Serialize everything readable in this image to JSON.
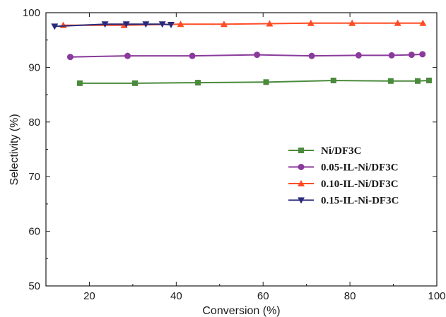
{
  "chart_data": {
    "type": "line",
    "title": "",
    "xlabel": "Conversion (%)",
    "ylabel": "Selectivity (%)",
    "xlim": [
      10,
      100
    ],
    "ylim": [
      50,
      100
    ],
    "xticks": [
      "20",
      "40",
      "60",
      "80",
      "100"
    ],
    "yticks": [
      "50",
      "60",
      "70",
      "80",
      "90",
      "100"
    ],
    "grid": false,
    "legend_position": "right",
    "series": [
      {
        "name": "Ni/DF3C",
        "color": "#4a8a3c",
        "marker": "square",
        "x": [
          17.8,
          30.5,
          45.0,
          60.7,
          76.2,
          89.4,
          95.6,
          98.2
        ],
        "y": [
          87.1,
          87.1,
          87.2,
          87.3,
          87.6,
          87.5,
          87.5,
          87.6
        ]
      },
      {
        "name": "0.05-IL-Ni/DF3C",
        "color": "#8a3a9c",
        "marker": "circle",
        "x": [
          15.6,
          28.8,
          43.7,
          58.6,
          71.2,
          82.0,
          89.6,
          94.2,
          96.7
        ],
        "y": [
          91.9,
          92.1,
          92.1,
          92.3,
          92.1,
          92.2,
          92.2,
          92.3,
          92.4
        ]
      },
      {
        "name": "0.10-IL-Ni/DF3C",
        "color": "#ff4c24",
        "marker": "triangle-up",
        "x": [
          14.0,
          28.0,
          41.0,
          51.0,
          61.5,
          71.0,
          80.5,
          91.0,
          96.8
        ],
        "y": [
          97.7,
          97.7,
          97.9,
          97.9,
          98.0,
          98.1,
          98.1,
          98.1,
          98.1
        ]
      },
      {
        "name": "0.15-IL-Ni-DF3C",
        "color": "#2a2a7a",
        "marker": "triangle-down",
        "x": [
          12.0,
          23.6,
          28.5,
          33.0,
          36.8,
          38.8
        ],
        "y": [
          97.5,
          97.9,
          97.9,
          97.9,
          97.9,
          97.8
        ]
      }
    ]
  }
}
